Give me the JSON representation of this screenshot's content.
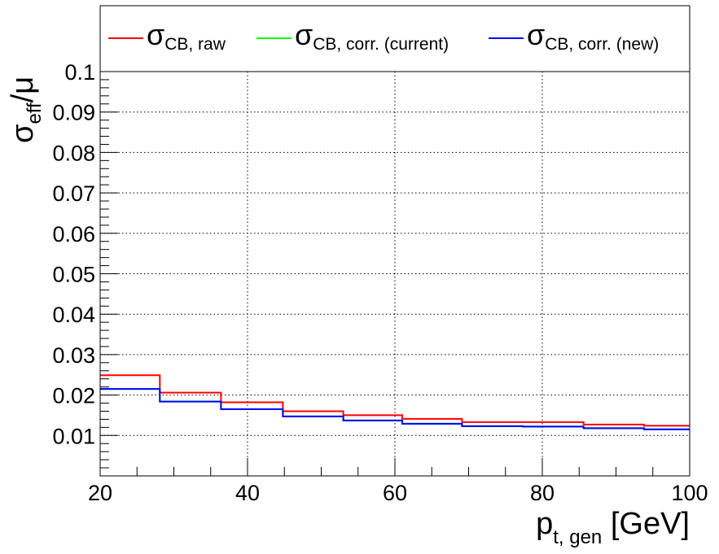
{
  "chart_data": {
    "type": "line",
    "style": "step-histogram",
    "xlabel": {
      "main": "p",
      "sub": "t, gen",
      "unit": " [GeV]"
    },
    "ylabel": {
      "main": "σ",
      "sub": "eff",
      "rest": "/μ"
    },
    "xlim": [
      20,
      100
    ],
    "ylim": [
      0,
      0.1
    ],
    "grid": true,
    "legend_placement": "top",
    "x_ticks": [
      {
        "value": 20,
        "label": "20"
      },
      {
        "value": 40,
        "label": "40"
      },
      {
        "value": 60,
        "label": "60"
      },
      {
        "value": 80,
        "label": "80"
      },
      {
        "value": 100,
        "label": "100"
      }
    ],
    "y_ticks": [
      {
        "value": 0.01,
        "label": "0.01"
      },
      {
        "value": 0.02,
        "label": "0.02"
      },
      {
        "value": 0.03,
        "label": "0.03"
      },
      {
        "value": 0.04,
        "label": "0.04"
      },
      {
        "value": 0.05,
        "label": "0.05"
      },
      {
        "value": 0.06,
        "label": "0.06"
      },
      {
        "value": 0.07,
        "label": "0.07"
      },
      {
        "value": 0.08,
        "label": "0.08"
      },
      {
        "value": 0.09,
        "label": "0.09"
      },
      {
        "value": 0.1,
        "label": "0.1"
      }
    ],
    "bin_edges": [
      20,
      28.1,
      36.4,
      44.8,
      53.0,
      61.0,
      69.1,
      77.4,
      85.6,
      93.8,
      100
    ],
    "series": [
      {
        "name": "σ",
        "name_sub": "CB, raw",
        "color": "#ff0000",
        "values": [
          0.0249,
          0.0206,
          0.0182,
          0.016,
          0.015,
          0.0141,
          0.0133,
          0.0133,
          0.0127,
          0.0124
        ]
      },
      {
        "name": "σ",
        "name_sub": "CB, corr. (current)",
        "color": "#00ff00",
        "values": [
          0.0215,
          0.0184,
          0.0165,
          0.0147,
          0.0137,
          0.0129,
          0.0123,
          0.0122,
          0.0118,
          0.0115
        ]
      },
      {
        "name": "σ",
        "name_sub": "CB, corr. (new)",
        "color": "#0000ff",
        "values": [
          0.0215,
          0.0184,
          0.0165,
          0.0147,
          0.0137,
          0.0129,
          0.0123,
          0.0122,
          0.0118,
          0.0115
        ]
      }
    ]
  }
}
